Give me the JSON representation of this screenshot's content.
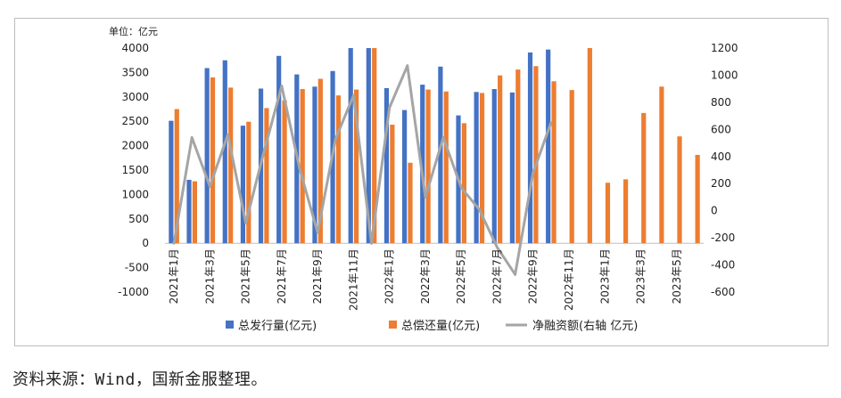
{
  "chart_data": {
    "type": "bar+line",
    "left_axis_unit_label": "单位：亿元",
    "ylim_left": [
      -1000,
      4000
    ],
    "yticks_left": [
      -1000,
      -500,
      0,
      500,
      1000,
      1500,
      2000,
      2500,
      3000,
      3500,
      4000
    ],
    "ylim_right": [
      -600,
      1200
    ],
    "yticks_right": [
      -600,
      -400,
      -200,
      0,
      200,
      400,
      600,
      800,
      1000,
      1200
    ],
    "categories": [
      "2021年1月",
      "2021年2月",
      "2021年3月",
      "2021年4月",
      "2021年5月",
      "2021年6月",
      "2021年7月",
      "2021年8月",
      "2021年9月",
      "2021年10月",
      "2021年11月",
      "2021年12月",
      "2022年1月",
      "2022年2月",
      "2022年3月",
      "2022年4月",
      "2022年5月",
      "2022年6月",
      "2022年7月",
      "2022年8月",
      "2022年9月",
      "2022年10月",
      "2022年11月",
      "2022年12月",
      "2023年1月",
      "2023年2月",
      "2023年3月",
      "2023年4月",
      "2023年5月",
      "2023年6月"
    ],
    "tick_labels": [
      "2021年1月",
      "2021年3月",
      "2021年5月",
      "2021年7月",
      "2021年9月",
      "2021年11月",
      "2022年1月",
      "2022年3月",
      "2022年5月",
      "2022年7月",
      "2022年9月",
      "2022年11月",
      "2023年1月",
      "2023年3月",
      "2023年5月"
    ],
    "series": [
      {
        "name": "总发行量(亿元)",
        "axis": "left",
        "kind": "bar",
        "color": "#4472C4",
        "values": [
          2510,
          1300,
          3590,
          3750,
          2410,
          3170,
          3840,
          3460,
          3210,
          3530,
          4000,
          4000,
          3180,
          2730,
          3250,
          3620,
          2620,
          3100,
          3160,
          3090,
          3910,
          3970,
          null,
          null,
          null,
          null,
          null,
          null,
          null,
          null
        ]
      },
      {
        "name": "总偿还量(亿元)",
        "axis": "left",
        "kind": "bar",
        "color": "#ED7D31",
        "values": [
          2750,
          1270,
          3400,
          3190,
          2490,
          2770,
          2930,
          3160,
          3370,
          3030,
          3150,
          4000,
          2430,
          1650,
          3150,
          3110,
          2460,
          3080,
          3440,
          3560,
          3630,
          3320,
          3140,
          4000,
          1240,
          1310,
          2670,
          3210,
          2190,
          1810
        ]
      },
      {
        "name": "净融资额(右轴 亿元)",
        "axis": "right",
        "kind": "line",
        "color": "#A5A5A5",
        "values": [
          -240,
          540,
          180,
          560,
          -90,
          430,
          920,
          310,
          -160,
          530,
          850,
          -240,
          760,
          1070,
          100,
          540,
          170,
          10,
          -270,
          -470,
          280,
          650,
          null,
          null,
          null,
          null,
          null,
          null,
          null,
          null
        ]
      }
    ]
  },
  "footer": {
    "source_note": "资料来源：Wind，国新金服整理。"
  }
}
